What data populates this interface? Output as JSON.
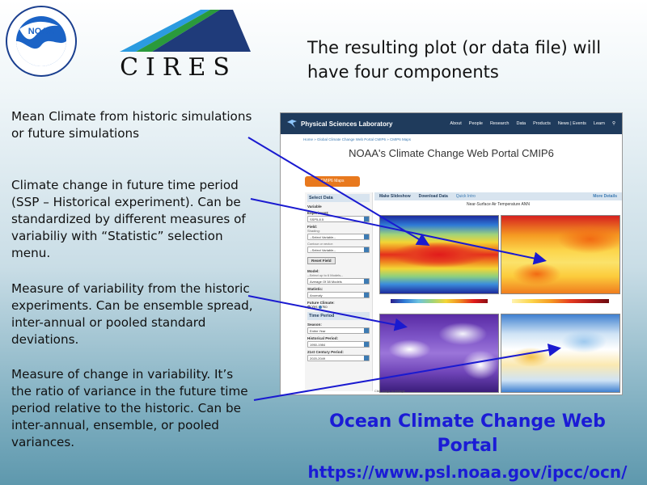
{
  "logos": {
    "noaa_ring_text_top": "NATIONAL OCEANIC AND ATMOSPHERIC ADMINISTRATION",
    "noaa_ring_text_bottom": "U.S. DEPARTMENT OF COMMERCE",
    "noaa_center": "NOAA",
    "cires": "CIRES"
  },
  "headline": "The resulting plot (or data file) will have four components",
  "bullets": [
    "Mean Climate from historic simulations or future simulations",
    "Climate change in future time period (SSP – Historical experiment). Can be standardized by different measures of variabiliy with “Statistic” selection menu.",
    "Measure of variability from the historic experiments.  Can be ensemble spread, inter-annual or pooled standard deviations.",
    "Measure of change in variability. It’s the ratio of variance in the future time period relative to the historic. Can be inter-annual, ensemble, or pooled variances."
  ],
  "screenshot": {
    "site_title": "Physical Sciences Laboratory",
    "nav": [
      "About",
      "People",
      "Research",
      "Data",
      "Products",
      "News | Events",
      "Learn"
    ],
    "breadcrumb": "Home » Global Climate Change Web Portal CMIP6 » CMIP6 Maps",
    "page_title": "NOAA's Climate Change Web Portal CMIP6",
    "orange_button": "CMIP6 Maps",
    "controls": {
      "header": "Select Data",
      "variable_label": "Variable",
      "experiment_label": "Experiment:",
      "experiment_value": "SSP5-8.5",
      "field_label": "Field:",
      "shading_label": "Shading:",
      "shading_value": "--Select Variable--",
      "contour_label": "Contour or vector:",
      "contour_value": "--Select Variable--",
      "reset_button": "Reset Field",
      "model_label": "Model:",
      "model_sub": "--Select up to 6 Models--",
      "model_value": "Average Of 38 Models",
      "statistic_label": "Statistic:",
      "statistic_value": "Anomaly",
      "future_climate_label": "Future Climate:",
      "radio_yes": "Yes",
      "radio_no": "No",
      "time_period_header": "Time Period",
      "season_label": "Season:",
      "season_value": "Entire Year",
      "historical_label": "Historical Period:",
      "historical_value": "1950-1984",
      "future_label": "21st Century Period:",
      "future_value": "2020-2049"
    },
    "tabs": {
      "make_slideshow": "Make Slideshow",
      "download_data": "Download Data",
      "quick_intro": "Quick Intro",
      "more_details": "More Details"
    },
    "plot_title": "Near-Surface Air Temperature ANN",
    "click_note": "Click image to enlarge"
  },
  "portal": {
    "name": "Ocean Climate Change Web Portal",
    "url": "https://www.psl.noaa.gov/ipcc/ocn/"
  },
  "colors": {
    "portal_link": "#1b1bd6",
    "arrow": "#1a1ad0",
    "psl_bar": "#1f3b5c"
  }
}
